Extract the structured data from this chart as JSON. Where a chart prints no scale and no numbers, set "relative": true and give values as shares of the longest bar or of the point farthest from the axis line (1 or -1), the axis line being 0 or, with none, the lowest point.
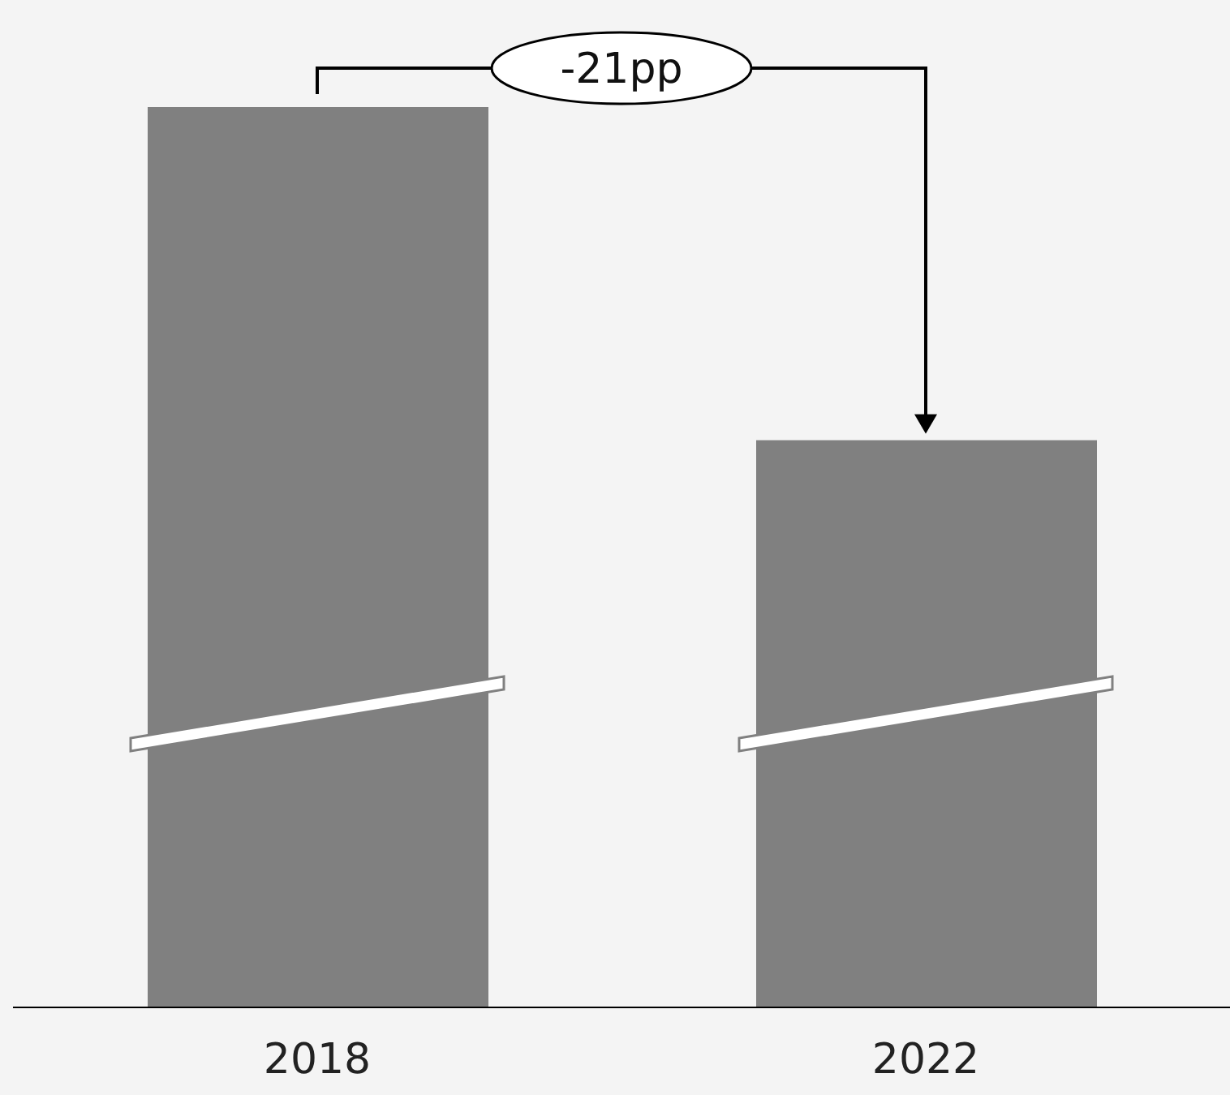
{
  "chart_data": {
    "type": "bar",
    "relative": true,
    "categories": [
      "2018",
      "2022"
    ],
    "values": [
      1,
      0.63
    ],
    "color": "#808080",
    "annotations": [
      "-21pp"
    ]
  }
}
